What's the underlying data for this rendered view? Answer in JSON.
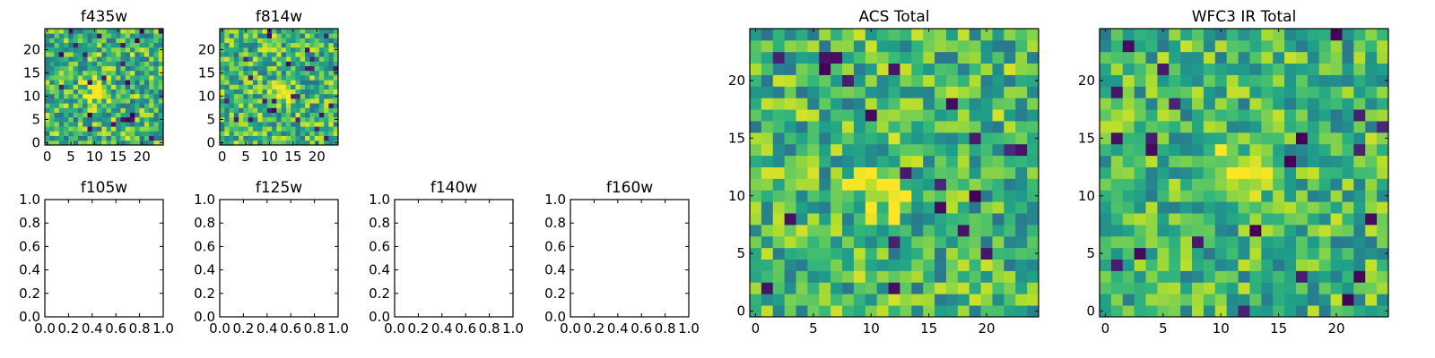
{
  "chart_data": [
    {
      "type": "heatmap",
      "title": "f435w",
      "shape": [
        25,
        25
      ],
      "xlim": [
        -0.5,
        24.5
      ],
      "ylim": [
        -0.5,
        24.5
      ],
      "xticks": [
        0,
        5,
        10,
        15,
        20
      ],
      "yticks": [
        0,
        5,
        10,
        15,
        20
      ],
      "colormap": "viridis",
      "grid": false,
      "source_peak": [
        10.5,
        10.5
      ],
      "noise_level": 0.3
    },
    {
      "type": "heatmap",
      "title": "f814w",
      "shape": [
        25,
        25
      ],
      "xlim": [
        -0.5,
        24.5
      ],
      "ylim": [
        -0.5,
        24.5
      ],
      "xticks": [
        0,
        5,
        10,
        15,
        20
      ],
      "yticks": [
        0,
        5,
        10,
        15,
        20
      ],
      "colormap": "viridis",
      "grid": false,
      "source_peak": [
        12,
        11
      ],
      "noise_level": 0.3
    },
    {
      "type": "heatmap",
      "title": "ACS Total",
      "shape": [
        25,
        25
      ],
      "xlim": [
        -0.5,
        24.5
      ],
      "ylim": [
        -0.5,
        24.5
      ],
      "xticks": [
        0,
        5,
        10,
        15,
        20
      ],
      "yticks": [
        0,
        5,
        10,
        15,
        20
      ],
      "colormap": "viridis",
      "grid": false,
      "source_peak": [
        11,
        10.5
      ],
      "noise_level": 0.28
    },
    {
      "type": "heatmap",
      "title": "WFC3 IR Total",
      "shape": [
        25,
        25
      ],
      "xlim": [
        -0.5,
        24.5
      ],
      "ylim": [
        -0.5,
        24.5
      ],
      "xticks": [
        0,
        5,
        10,
        15,
        20
      ],
      "yticks": [
        0,
        5,
        10,
        15,
        20
      ],
      "colormap": "viridis",
      "grid": false,
      "source_peak": [
        11.5,
        11.8
      ],
      "noise_level": 0.26
    },
    {
      "type": "line",
      "title": "f105w",
      "series": [],
      "xlim": [
        0.0,
        1.0
      ],
      "ylim": [
        0.0,
        1.0
      ],
      "xticks": [
        "0.0",
        "0.2",
        "0.4",
        "0.6",
        "0.8",
        "1.0"
      ],
      "yticks": [
        "0.0",
        "0.2",
        "0.4",
        "0.6",
        "0.8",
        "1.0"
      ]
    },
    {
      "type": "line",
      "title": "f125w",
      "series": [],
      "xlim": [
        0.0,
        1.0
      ],
      "ylim": [
        0.0,
        1.0
      ],
      "xticks": [
        "0.0",
        "0.2",
        "0.4",
        "0.6",
        "0.8",
        "1.0"
      ],
      "yticks": [
        "0.0",
        "0.2",
        "0.4",
        "0.6",
        "0.8",
        "1.0"
      ]
    },
    {
      "type": "line",
      "title": "f140w",
      "series": [],
      "xlim": [
        0.0,
        1.0
      ],
      "ylim": [
        0.0,
        1.0
      ],
      "xticks": [
        "0.0",
        "0.2",
        "0.4",
        "0.6",
        "0.8",
        "1.0"
      ],
      "yticks": [
        "0.0",
        "0.2",
        "0.4",
        "0.6",
        "0.8",
        "1.0"
      ]
    },
    {
      "type": "line",
      "title": "f160w",
      "series": [],
      "xlim": [
        0.0,
        1.0
      ],
      "ylim": [
        0.0,
        1.0
      ],
      "xticks": [
        "0.0",
        "0.2",
        "0.4",
        "0.6",
        "0.8",
        "1.0"
      ],
      "yticks": [
        "0.0",
        "0.2",
        "0.4",
        "0.6",
        "0.8",
        "1.0"
      ]
    }
  ]
}
